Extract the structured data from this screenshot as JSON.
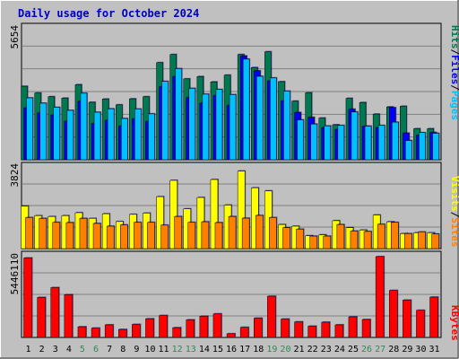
{
  "title": "Daily usage for October 2024",
  "colors": {
    "background": "#c0c0c0",
    "title_text": "#0000c0",
    "hits": "#007850",
    "files": "#0000ff",
    "pages": "#00c0ff",
    "visits": "#ffff00",
    "sites": "#ff8000",
    "kbytes": "#ff0000",
    "weekend_day": "#2e8b57",
    "weekday": "#000000",
    "separator_slash": "#000000"
  },
  "chart_data": [
    {
      "type": "bar",
      "panel": "hits-files-pages",
      "y_max_label": "5654",
      "ylim": [
        0,
        5654
      ],
      "legend": [
        "Pages",
        "Files",
        "Hits"
      ],
      "categories": [
        "1",
        "2",
        "3",
        "4",
        "5",
        "6",
        "7",
        "8",
        "9",
        "10",
        "11",
        "12",
        "13",
        "14",
        "15",
        "16",
        "17",
        "18",
        "19",
        "20",
        "21",
        "22",
        "23",
        "24",
        "25",
        "26",
        "27",
        "28",
        "29",
        "30",
        "31"
      ],
      "weekend_days": [
        "5",
        "6",
        "12",
        "13",
        "19",
        "20",
        "26",
        "27"
      ],
      "series": [
        {
          "name": "Hits",
          "values": [
            3170,
            2880,
            2720,
            2660,
            3240,
            2480,
            2620,
            2370,
            2630,
            2720,
            4190,
            4540,
            3490,
            3590,
            3360,
            3650,
            4540,
            3980,
            4660,
            3370,
            2530,
            2890,
            1800,
            1510,
            2650,
            2470,
            1970,
            2280,
            2310,
            1340,
            1340
          ]
        },
        {
          "name": "Files",
          "values": [
            2240,
            2020,
            1930,
            1660,
            2520,
            1560,
            1700,
            1450,
            1770,
            1650,
            3150,
            3590,
            2680,
            2440,
            2770,
            2340,
            4480,
            3840,
            3400,
            2540,
            2040,
            1830,
            1390,
            1310,
            2180,
            1440,
            1390,
            2250,
            1150,
            1060,
            1180
          ]
        },
        {
          "name": "Pages",
          "values": [
            2670,
            2440,
            2260,
            2130,
            2870,
            2050,
            2200,
            1780,
            2190,
            1980,
            3380,
            3930,
            3080,
            2830,
            3030,
            2810,
            4340,
            3600,
            3530,
            2960,
            1720,
            1540,
            1460,
            1480,
            2060,
            1450,
            1480,
            1620,
            830,
            1170,
            1140
          ]
        }
      ]
    },
    {
      "type": "bar",
      "panel": "visits-sites",
      "y_max_label": "3824",
      "ylim": [
        0,
        3824
      ],
      "legend": [
        "Sites",
        "Visits"
      ],
      "series": [
        {
          "name": "Visits",
          "values": [
            2010,
            1560,
            1520,
            1560,
            1700,
            1430,
            1650,
            1280,
            1620,
            1680,
            2460,
            3230,
            1880,
            2420,
            3270,
            2060,
            3670,
            2880,
            2730,
            1140,
            1060,
            610,
            650,
            1320,
            990,
            880,
            1590,
            1270,
            710,
            750,
            750
          ]
        },
        {
          "name": "Sites",
          "values": [
            1470,
            1430,
            1240,
            1230,
            1430,
            1190,
            1060,
            1120,
            1240,
            1240,
            1110,
            1520,
            1240,
            1270,
            1230,
            1520,
            1440,
            1570,
            1470,
            990,
            920,
            590,
            590,
            1140,
            830,
            810,
            1150,
            1240,
            710,
            790,
            690
          ]
        }
      ]
    },
    {
      "type": "bar",
      "panel": "kbytes",
      "y_max_label": "5446110",
      "ylim": [
        0,
        5446110
      ],
      "legend": [
        "KBytes"
      ],
      "series": [
        {
          "name": "KBytes",
          "values": [
            5360000,
            2700000,
            3360000,
            2880000,
            720000,
            630000,
            850000,
            540000,
            880000,
            1260000,
            1480000,
            660000,
            1190000,
            1430000,
            1590000,
            250000,
            680000,
            1300000,
            2780000,
            1240000,
            1050000,
            760000,
            1030000,
            850000,
            1390000,
            1210000,
            5450000,
            3170000,
            2520000,
            1830000,
            2720000
          ]
        }
      ]
    }
  ]
}
